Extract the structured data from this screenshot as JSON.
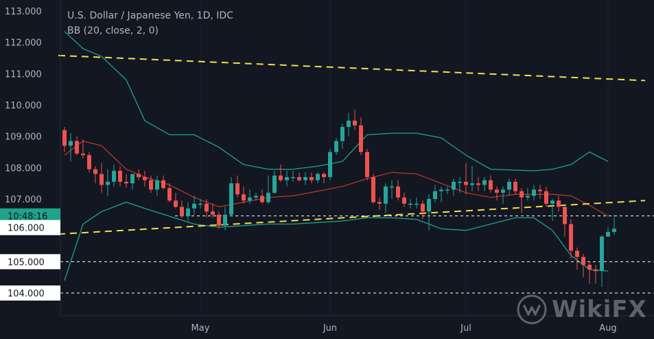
{
  "legend": {
    "title": "U.S. Dollar / Japanese Yen, 1D, IDC",
    "indicator": "BB (20, close, 2, 0)"
  },
  "colors": {
    "background": "#131722",
    "up": "#26a69a",
    "down": "#ef5350",
    "basis": "#c0392b",
    "bands": "#1fa38c",
    "trendline": "#f2e04b",
    "axis_text": "#b2b5be",
    "current_label_bg": "#1fa38c",
    "level_label_bg": "#ffffff"
  },
  "watermark": {
    "text": "WikiFX",
    "icon": "wikifx-logo-icon"
  },
  "labels": {
    "current_time": "10:48:16",
    "levels": [
      "106.000",
      "105.000",
      "104.000"
    ]
  },
  "chart_data": {
    "type": "candlestick",
    "title": "U.S. Dollar / Japanese Yen, 1D, IDC",
    "y_ticks": [
      "113.000",
      "112.000",
      "111.000",
      "110.000",
      "109.000",
      "108.000",
      "107.000"
    ],
    "ylim": [
      103.6,
      113.4
    ],
    "x_ticks": [
      {
        "label": "May",
        "date": "2020-05-01"
      },
      {
        "label": "Jun",
        "date": "2020-06-01"
      },
      {
        "label": "Jul",
        "date": "2020-07-01"
      },
      {
        "label": "Aug",
        "date": "2020-08-03"
      }
    ],
    "dates": [
      "2020-04-01",
      "2020-04-02",
      "2020-04-03",
      "2020-04-06",
      "2020-04-07",
      "2020-04-08",
      "2020-04-09",
      "2020-04-10",
      "2020-04-13",
      "2020-04-14",
      "2020-04-15",
      "2020-04-16",
      "2020-04-17",
      "2020-04-20",
      "2020-04-21",
      "2020-04-22",
      "2020-04-23",
      "2020-04-24",
      "2020-04-27",
      "2020-04-28",
      "2020-04-29",
      "2020-04-30",
      "2020-05-01",
      "2020-05-04",
      "2020-05-05",
      "2020-05-06",
      "2020-05-07",
      "2020-05-08",
      "2020-05-11",
      "2020-05-12",
      "2020-05-13",
      "2020-05-14",
      "2020-05-15",
      "2020-05-18",
      "2020-05-19",
      "2020-05-20",
      "2020-05-21",
      "2020-05-22",
      "2020-05-25",
      "2020-05-26",
      "2020-05-27",
      "2020-05-28",
      "2020-05-29",
      "2020-06-01",
      "2020-06-02",
      "2020-06-03",
      "2020-06-04",
      "2020-06-05",
      "2020-06-08",
      "2020-06-09",
      "2020-06-10",
      "2020-06-11",
      "2020-06-12",
      "2020-06-15",
      "2020-06-16",
      "2020-06-17",
      "2020-06-18",
      "2020-06-19",
      "2020-06-22",
      "2020-06-23",
      "2020-06-24",
      "2020-06-25",
      "2020-06-26",
      "2020-06-29",
      "2020-06-30",
      "2020-07-01",
      "2020-07-02",
      "2020-07-03",
      "2020-07-06",
      "2020-07-07",
      "2020-07-08",
      "2020-07-09",
      "2020-07-10",
      "2020-07-13",
      "2020-07-14",
      "2020-07-15",
      "2020-07-16",
      "2020-07-17",
      "2020-07-20",
      "2020-07-21",
      "2020-07-22",
      "2020-07-23",
      "2020-07-24",
      "2020-07-27",
      "2020-07-28",
      "2020-07-29",
      "2020-07-30",
      "2020-07-31",
      "2020-08-03",
      "2020-08-04"
    ],
    "open": [
      109.2,
      108.7,
      108.85,
      108.45,
      108.4,
      107.95,
      107.8,
      107.45,
      107.55,
      107.9,
      107.55,
      107.5,
      107.8,
      107.7,
      107.6,
      107.3,
      107.6,
      107.35,
      106.95,
      106.75,
      106.45,
      106.7,
      106.85,
      106.85,
      106.6,
      106.5,
      106.15,
      106.5,
      107.5,
      107.15,
      106.95,
      107.05,
      107.1,
      106.9,
      107.2,
      107.75,
      107.6,
      107.7,
      107.7,
      107.6,
      107.7,
      107.6,
      107.8,
      107.7,
      108.5,
      108.85,
      109.3,
      109.5,
      109.35,
      108.5,
      107.7,
      106.9,
      106.85,
      107.4,
      107.4,
      107.05,
      106.85,
      106.85,
      106.85,
      106.6,
      107.0,
      107.25,
      107.3,
      107.3,
      107.55,
      107.55,
      107.45,
      107.5,
      107.45,
      107.6,
      107.3,
      107.2,
      107.3,
      107.55,
      107.25,
      107.05,
      107.1,
      107.3,
      107.25,
      106.85,
      106.95,
      106.75,
      106.2,
      105.35,
      105.15,
      104.9,
      104.75,
      104.7,
      105.8,
      105.95
    ],
    "high": [
      109.3,
      109.1,
      109.0,
      108.9,
      108.5,
      108.05,
      108.15,
      107.95,
      108.1,
      108.05,
      107.8,
      107.75,
      107.95,
      107.9,
      107.75,
      107.75,
      107.75,
      107.5,
      107.2,
      106.95,
      106.9,
      107.1,
      107.0,
      107.0,
      106.85,
      106.6,
      106.75,
      107.7,
      107.75,
      107.4,
      107.3,
      107.2,
      107.3,
      107.75,
      107.9,
      108.1,
      107.9,
      107.9,
      107.85,
      107.85,
      107.85,
      107.85,
      107.85,
      108.6,
      108.95,
      109.4,
      109.75,
      109.85,
      109.6,
      108.6,
      107.8,
      107.05,
      107.5,
      107.6,
      107.6,
      107.2,
      107.0,
      107.05,
      106.95,
      107.15,
      107.45,
      107.4,
      107.4,
      107.65,
      107.7,
      108.15,
      108.05,
      107.7,
      107.7,
      107.75,
      107.4,
      107.4,
      107.65,
      107.65,
      107.35,
      107.35,
      107.45,
      107.45,
      107.4,
      107.0,
      107.1,
      106.85,
      106.35,
      105.45,
      105.25,
      105.0,
      104.9,
      105.85,
      106.1,
      106.5
    ],
    "low": [
      108.5,
      108.2,
      108.4,
      108.3,
      107.85,
      107.5,
      107.2,
      107.1,
      107.4,
      107.4,
      107.35,
      107.3,
      107.6,
      107.4,
      107.2,
      107.1,
      107.3,
      106.9,
      106.7,
      106.4,
      106.3,
      106.5,
      106.7,
      106.4,
      106.4,
      106.05,
      106.0,
      106.45,
      107.05,
      106.85,
      106.85,
      106.95,
      106.85,
      106.85,
      107.15,
      107.55,
      107.4,
      107.55,
      107.55,
      107.45,
      107.5,
      107.5,
      107.5,
      107.6,
      108.4,
      108.6,
      109.0,
      109.2,
      108.4,
      107.6,
      106.85,
      106.65,
      106.55,
      107.0,
      106.95,
      106.75,
      106.7,
      106.7,
      106.35,
      106.0,
      106.9,
      106.9,
      107.15,
      107.1,
      107.2,
      107.15,
      107.25,
      107.25,
      107.25,
      107.2,
      106.95,
      106.85,
      107.1,
      107.15,
      106.55,
      106.95,
      106.95,
      107.0,
      106.75,
      106.3,
      106.6,
      105.8,
      105.1,
      104.75,
      104.5,
      104.3,
      104.3,
      104.2,
      105.8,
      105.85
    ],
    "close": [
      108.7,
      108.85,
      108.45,
      108.4,
      107.95,
      107.8,
      107.45,
      107.55,
      107.9,
      107.55,
      107.5,
      107.8,
      107.7,
      107.6,
      107.3,
      107.6,
      107.35,
      106.95,
      106.75,
      106.45,
      106.7,
      106.85,
      106.85,
      106.6,
      106.5,
      106.15,
      106.5,
      107.5,
      107.15,
      106.95,
      107.05,
      107.1,
      106.9,
      107.2,
      107.75,
      107.6,
      107.7,
      107.7,
      107.6,
      107.7,
      107.6,
      107.8,
      107.7,
      108.5,
      108.85,
      109.3,
      109.5,
      109.35,
      108.5,
      107.7,
      106.9,
      106.85,
      107.4,
      107.4,
      107.05,
      106.85,
      106.85,
      106.85,
      106.6,
      107.0,
      107.25,
      107.3,
      107.3,
      107.55,
      107.55,
      107.45,
      107.5,
      107.45,
      107.6,
      107.3,
      107.2,
      107.3,
      107.55,
      107.25,
      107.05,
      107.1,
      107.3,
      107.25,
      106.85,
      106.95,
      106.75,
      106.2,
      105.35,
      105.15,
      104.9,
      104.75,
      104.7,
      105.8,
      105.95,
      106.05
    ],
    "bb_upper_anchor": [
      [
        0,
        112.35
      ],
      [
        3,
        111.8
      ],
      [
        6,
        111.55
      ],
      [
        10,
        110.8
      ],
      [
        13,
        109.5
      ],
      [
        17,
        109.05
      ],
      [
        21,
        109.05
      ],
      [
        25,
        108.65
      ],
      [
        29,
        108.1
      ],
      [
        33,
        107.95
      ],
      [
        37,
        107.95
      ],
      [
        41,
        108.05
      ],
      [
        45,
        108.2
      ],
      [
        49,
        109.05
      ],
      [
        53,
        109.1
      ],
      [
        57,
        109.1
      ],
      [
        61,
        108.95
      ],
      [
        65,
        108.4
      ],
      [
        69,
        107.95
      ],
      [
        73,
        107.92
      ],
      [
        76,
        107.9
      ],
      [
        79,
        107.95
      ],
      [
        82,
        108.1
      ],
      [
        85,
        108.5
      ],
      [
        88,
        108.2
      ]
    ],
    "bb_lower_anchor": [
      [
        0,
        104.4
      ],
      [
        3,
        106.2
      ],
      [
        6,
        106.6
      ],
      [
        10,
        106.9
      ],
      [
        13,
        106.7
      ],
      [
        17,
        106.45
      ],
      [
        21,
        106.2
      ],
      [
        25,
        106.1
      ],
      [
        29,
        106.15
      ],
      [
        33,
        106.2
      ],
      [
        37,
        106.2
      ],
      [
        41,
        106.25
      ],
      [
        45,
        106.3
      ],
      [
        49,
        106.4
      ],
      [
        53,
        106.4
      ],
      [
        57,
        106.35
      ],
      [
        61,
        106.05
      ],
      [
        65,
        106.0
      ],
      [
        69,
        106.2
      ],
      [
        73,
        106.4
      ],
      [
        76,
        106.4
      ],
      [
        79,
        106.0
      ],
      [
        82,
        105.2
      ],
      [
        85,
        104.75
      ],
      [
        88,
        104.7
      ]
    ],
    "bb_basis_anchor": [
      [
        0,
        108.4
      ],
      [
        3,
        108.85
      ],
      [
        6,
        108.7
      ],
      [
        10,
        107.95
      ],
      [
        13,
        107.7
      ],
      [
        17,
        107.45
      ],
      [
        21,
        107.05
      ],
      [
        25,
        106.75
      ],
      [
        29,
        106.9
      ],
      [
        33,
        107.05
      ],
      [
        37,
        107.1
      ],
      [
        41,
        107.25
      ],
      [
        45,
        107.4
      ],
      [
        49,
        107.65
      ],
      [
        53,
        107.85
      ],
      [
        57,
        107.8
      ],
      [
        61,
        107.5
      ],
      [
        65,
        107.2
      ],
      [
        69,
        107.05
      ],
      [
        73,
        107.15
      ],
      [
        76,
        107.15
      ],
      [
        79,
        107.15
      ],
      [
        82,
        107.1
      ],
      [
        85,
        106.8
      ],
      [
        88,
        106.45
      ]
    ],
    "trendlines": [
      {
        "from": [
          -1,
          111.58
        ],
        "to": [
          94,
          110.78
        ]
      },
      {
        "from": [
          -1,
          105.88
        ],
        "to": [
          94,
          106.95
        ]
      }
    ],
    "horizontal_levels": [
      {
        "value": 106.0,
        "label": "106.000"
      },
      {
        "value": 105.0,
        "label": "105.000"
      },
      {
        "value": 104.0,
        "label": "104.000"
      }
    ],
    "current_price_line": 106.0
  }
}
